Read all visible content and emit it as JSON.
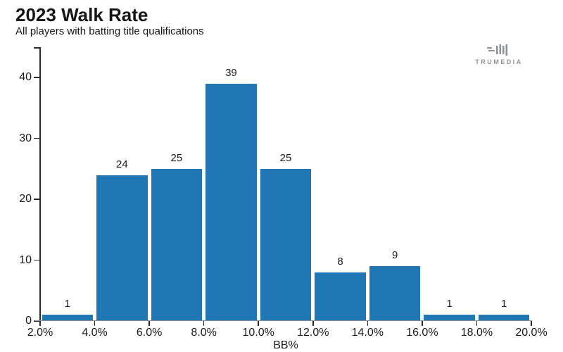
{
  "header": {
    "title": "2023 Walk Rate",
    "subtitle": "All players with batting title qualifications"
  },
  "branding": {
    "logo_text": "TRUMEDIA"
  },
  "chart_data": {
    "type": "bar",
    "title": "2023 Walk Rate",
    "subtitle": "All players with batting title qualifications",
    "xlabel": "BB%",
    "ylabel": "",
    "categories": [
      "2.0%-4.0%",
      "4.0%-6.0%",
      "6.0%-8.0%",
      "8.0%-10.0%",
      "10.0%-12.0%",
      "12.0%-14.0%",
      "14.0%-16.0%",
      "16.0%-18.0%",
      "18.0%-20.0%"
    ],
    "values": [
      1,
      24,
      25,
      39,
      25,
      8,
      9,
      1,
      1
    ],
    "bar_labels": [
      "1",
      "24",
      "25",
      "39",
      "25",
      "8",
      "9",
      "1",
      "1"
    ],
    "x_tick_labels": [
      "2.0%",
      "4.0%",
      "6.0%",
      "8.0%",
      "10.0%",
      "12.0%",
      "14.0%",
      "16.0%",
      "18.0%",
      "20.0%"
    ],
    "y_ticks": [
      0,
      10,
      20,
      30,
      40
    ],
    "ylim": [
      0,
      45
    ],
    "grid": false,
    "legend": "none",
    "bar_color": "#2177b4",
    "axis_color": "#2b2b2b",
    "baseline_color": "#8b9197"
  }
}
